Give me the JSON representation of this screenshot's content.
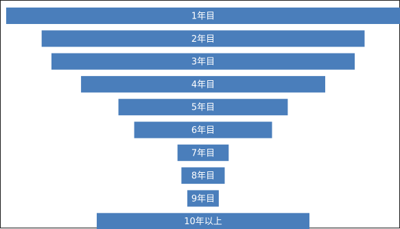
{
  "chart_data": {
    "type": "bar",
    "orientation": "horizontal-centered",
    "title": "",
    "xlabel": "",
    "ylabel": "",
    "grid": false,
    "legend": "none",
    "bar_color": "#4a7ebb",
    "label_color": "#ffffff",
    "categories": [
      "1年目",
      "2年目",
      "3年目",
      "4年目",
      "5年目",
      "6年目",
      "7年目",
      "8年目",
      "9年目",
      "10年以上"
    ],
    "values": [
      100,
      82,
      77,
      62,
      43,
      35,
      13,
      11,
      8,
      54
    ]
  }
}
